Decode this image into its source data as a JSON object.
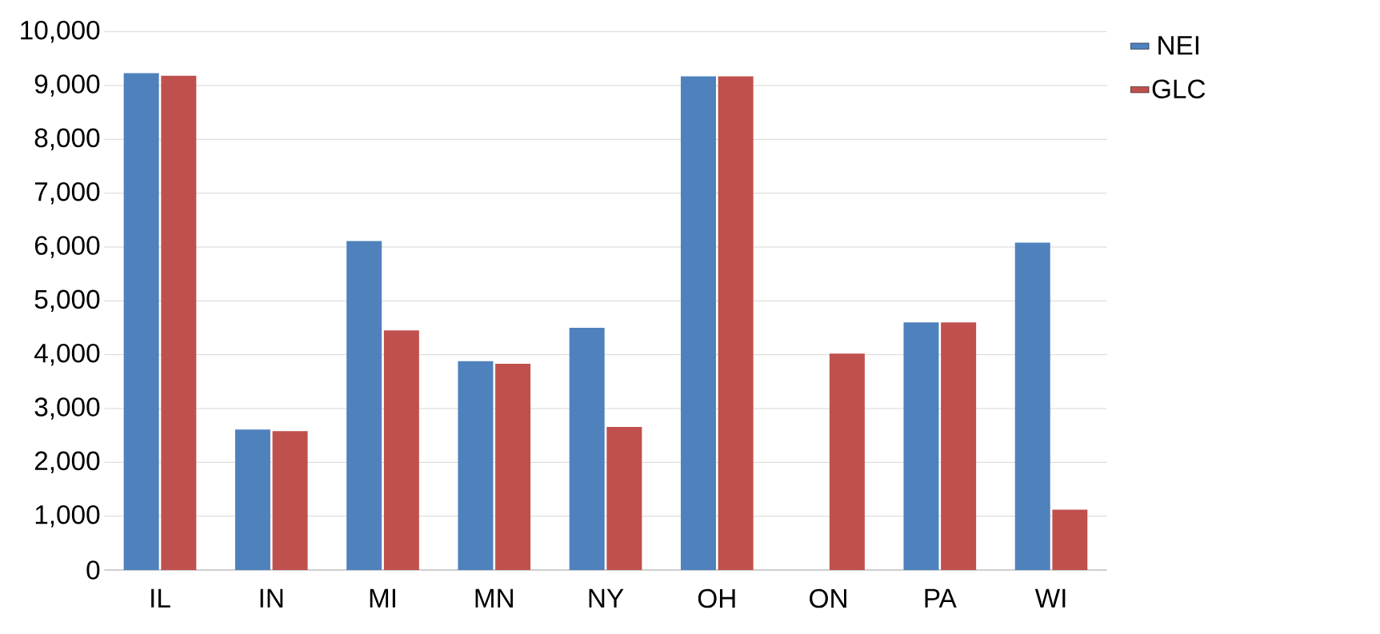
{
  "chart_data": {
    "type": "bar",
    "categories": [
      "IL",
      "IN",
      "MI",
      "MN",
      "NY",
      "OH",
      "ON",
      "PA",
      "WI"
    ],
    "series": [
      {
        "name": "NEI",
        "color": "#4f81bd",
        "values": [
          9230,
          2610,
          6110,
          3880,
          4500,
          9170,
          null,
          4600,
          6080
        ]
      },
      {
        "name": "GLC",
        "color": "#c0504d",
        "values": [
          9180,
          2580,
          4450,
          3830,
          2660,
          9170,
          4020,
          4600,
          1120
        ]
      }
    ],
    "ylim": [
      0,
      10000
    ],
    "yticks": [
      0,
      {
        "value": 1000,
        "label": "1,000"
      },
      {
        "value": 2000,
        "label": "2,000"
      },
      {
        "value": 3000,
        "label": "3,000"
      },
      {
        "value": 4000,
        "label": "4,000"
      },
      {
        "value": 5000,
        "label": "5,000"
      },
      {
        "value": 6000,
        "label": "6,000"
      },
      {
        "value": 7000,
        "label": "7,000"
      },
      {
        "value": 8000,
        "label": "8,000"
      },
      {
        "value": 9000,
        "label": "9,000"
      },
      {
        "value": 10000,
        "label": "10,000"
      }
    ],
    "grid": "y",
    "legend": "right"
  }
}
